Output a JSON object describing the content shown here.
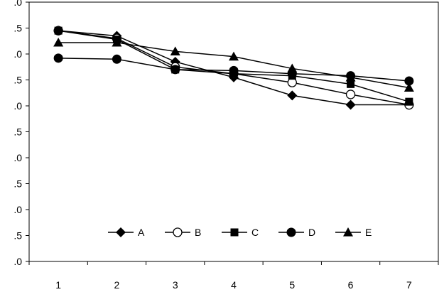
{
  "chart_data": {
    "type": "line",
    "title": "",
    "xlabel": "",
    "ylabel": "",
    "x": [
      1,
      2,
      3,
      4,
      5,
      6,
      7
    ],
    "xlim": [
      0.5,
      7.5
    ],
    "ylim": [
      0.0,
      5.0
    ],
    "y_ticks": [
      ".0",
      ".5",
      ".0",
      ".5",
      ".0",
      ".5",
      ".0",
      ".5",
      ".0",
      ".5",
      ".0"
    ],
    "x_ticks": [
      "1",
      "2",
      "3",
      "4",
      "5",
      "6",
      "7"
    ],
    "grid": false,
    "legend_position": "bottom-center",
    "series": [
      {
        "name": "A",
        "marker": "diamond",
        "values": [
          4.45,
          4.35,
          3.85,
          3.55,
          3.2,
          3.02,
          3.02
        ]
      },
      {
        "name": "B",
        "marker": "open-circle",
        "values": [
          4.45,
          4.3,
          3.75,
          3.62,
          3.45,
          3.22,
          3.02
        ]
      },
      {
        "name": "C",
        "marker": "square",
        "values": [
          4.45,
          4.28,
          3.7,
          3.62,
          3.58,
          3.42,
          3.08
        ]
      },
      {
        "name": "D",
        "marker": "circle",
        "values": [
          3.92,
          3.9,
          3.7,
          3.68,
          3.62,
          3.58,
          3.48
        ]
      },
      {
        "name": "E",
        "marker": "triangle",
        "values": [
          4.22,
          4.22,
          4.05,
          3.95,
          3.72,
          3.55,
          3.35
        ]
      }
    ]
  }
}
